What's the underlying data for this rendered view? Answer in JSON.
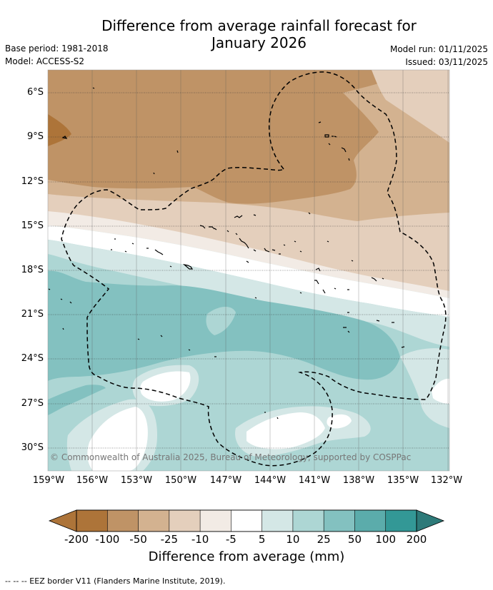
{
  "title_line1": "Difference from average rainfall forecast for",
  "title_line2": "January 2026",
  "base_period": "Base period: 1981-2018",
  "model": "Model: ACCESS-S2",
  "model_run": "Model run: 01/11/2025",
  "issued": "Issued: 03/11/2025",
  "credit": "© Commonwealth of Australia 2025, Bureau of Meteorology, supported by COSPPac",
  "lat_labels": [
    "6°S",
    "9°S",
    "12°S",
    "15°S",
    "18°S",
    "21°S",
    "24°S",
    "27°S",
    "30°S"
  ],
  "lon_labels": [
    "159°W",
    "156°W",
    "153°W",
    "150°W",
    "147°W",
    "144°W",
    "141°W",
    "138°W",
    "135°W",
    "132°W"
  ],
  "colorbar": {
    "title": "Difference from average (mm)",
    "tick_labels": [
      "-200",
      "-100",
      "-50",
      "-25",
      "-10",
      "-5",
      "5",
      "10",
      "25",
      "50",
      "100",
      "200"
    ],
    "colors": [
      "#ad7439",
      "#bf9366",
      "#d3b290",
      "#e4cfbc",
      "#f2ebe5",
      "#ffffff",
      "#d4e7e6",
      "#add6d4",
      "#83c1c0",
      "#5bacab",
      "#339896",
      "#2d7a79"
    ]
  },
  "footnote": "--  --  -- EEZ border V11 (Flanders Marine Institute, 2019)."
}
